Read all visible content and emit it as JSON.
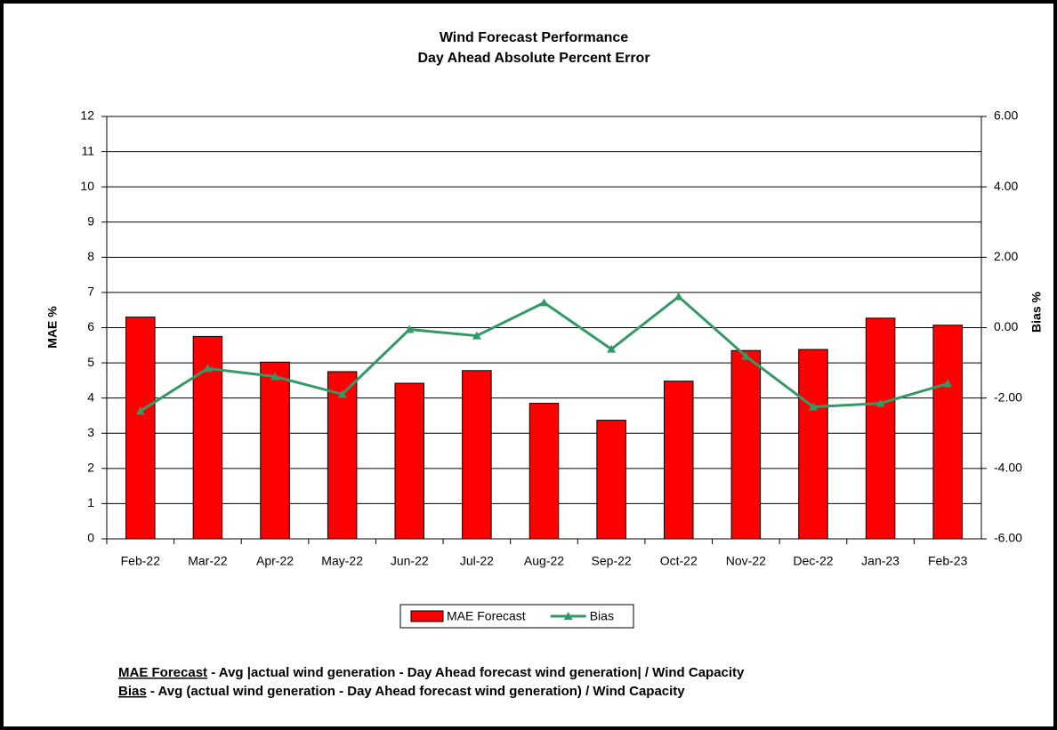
{
  "chart_data": {
    "type": "bar_line",
    "title": "Wind Forecast Performance",
    "subtitle": "Day Ahead Absolute Percent Error",
    "y_label": "MAE %",
    "y2_label": "Bias %",
    "categories": [
      "Feb-22",
      "Mar-22",
      "Apr-22",
      "May-22",
      "Jun-22",
      "Jul-22",
      "Aug-22",
      "Sep-22",
      "Oct-22",
      "Nov-22",
      "Dec-22",
      "Jan-23",
      "Feb-23"
    ],
    "series": [
      {
        "name": "MAE Forecast",
        "type": "bar",
        "color": "#ff0000",
        "values": [
          6.3,
          5.75,
          5.02,
          4.75,
          4.42,
          4.78,
          3.85,
          3.37,
          4.48,
          5.35,
          5.38,
          6.27,
          6.07
        ]
      },
      {
        "name": "Bias",
        "type": "line",
        "axis": "y2",
        "color": "#339966",
        "values": [
          -2.37,
          -1.16,
          -1.39,
          -1.89,
          -0.05,
          -0.23,
          0.71,
          -0.61,
          0.88,
          -0.81,
          -2.25,
          -2.15,
          -1.59
        ]
      }
    ],
    "ylim": [
      0,
      12
    ],
    "yticks": [
      0,
      1,
      2,
      3,
      4,
      5,
      6,
      7,
      8,
      9,
      10,
      11,
      12
    ],
    "y2lim": [
      -6,
      6
    ],
    "y2ticks": [
      {
        "value": -6,
        "label": "-6.00"
      },
      {
        "value": -4,
        "label": "-4.00"
      },
      {
        "value": -2,
        "label": "-2.00"
      },
      {
        "value": 0,
        "label": "0.00"
      },
      {
        "value": 2,
        "label": "2.00"
      },
      {
        "value": 4,
        "label": "4.00"
      },
      {
        "value": 6,
        "label": "6.00"
      }
    ],
    "grid": true,
    "legend": "bottom",
    "footnotes": [
      {
        "term": "MAE Forecast",
        "text": " - Avg |actual wind generation - Day Ahead forecast wind generation| / Wind Capacity"
      },
      {
        "term": "Bias",
        "text": " - Avg (actual wind generation - Day Ahead forecast wind generation) / Wind Capacity"
      }
    ]
  }
}
